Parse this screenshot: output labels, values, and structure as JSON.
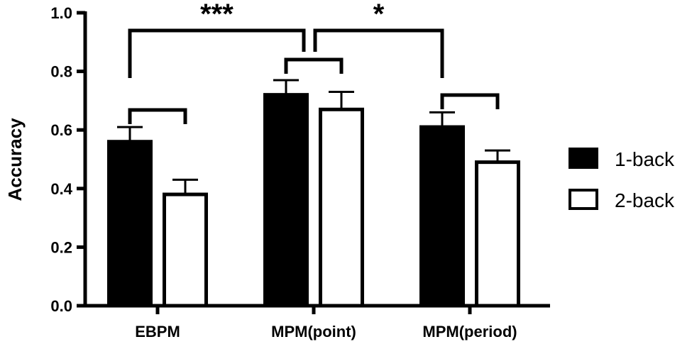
{
  "chart_data": {
    "type": "bar",
    "ylabel": "Accuracy",
    "xlabel": "",
    "ylim": [
      0,
      1.0
    ],
    "yticks": [
      "0.0",
      "0.2",
      "0.4",
      "0.6",
      "0.8",
      "1.0"
    ],
    "categories": [
      "EBPM",
      "MPM(point)",
      "MPM(period)"
    ],
    "series": [
      {
        "name": "1-back",
        "values": [
          0.56,
          0.72,
          0.61
        ],
        "errors": [
          0.05,
          0.05,
          0.05
        ],
        "fill": "#000000"
      },
      {
        "name": "2-back",
        "values": [
          0.38,
          0.67,
          0.49
        ],
        "errors": [
          0.05,
          0.06,
          0.04
        ],
        "fill": "#ffffff"
      }
    ],
    "legend_position": "right",
    "grid": false,
    "significance": [
      {
        "label": "***",
        "between": [
          "EBPM",
          "MPM(point)"
        ]
      },
      {
        "label": "*",
        "between": [
          "MPM(point)",
          "MPM(period)"
        ]
      }
    ]
  }
}
